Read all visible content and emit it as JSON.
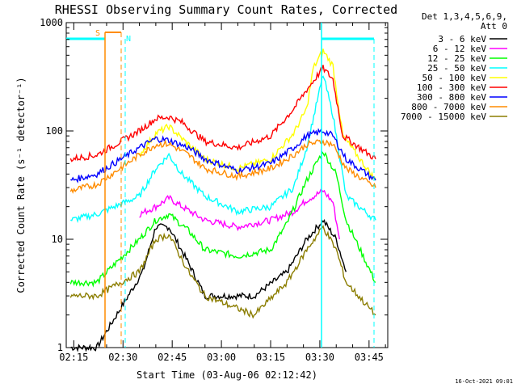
{
  "chart_data": {
    "type": "line",
    "title": "RHESSI Observing Summary Count Rates, Corrected",
    "xlabel": "Start Time (03-Aug-06 02:12:42)",
    "ylabel": "Corrected Count Rate (s⁻¹ detector⁻¹)",
    "y_scale": "log",
    "ylim": [
      1,
      1000
    ],
    "xlim": [
      "02:12:42",
      "03:50:42"
    ],
    "x_ticks": [
      "02:15",
      "02:30",
      "02:45",
      "03:00",
      "03:15",
      "03:30",
      "03:45"
    ],
    "y_ticks": [
      "1",
      "10",
      "100",
      "1000"
    ],
    "grid": false,
    "legend_position": "right",
    "legend_header": [
      "Det 1,3,4,5,6,9,",
      "Att 0"
    ],
    "timestamp": "16-Oct-2021 09:01",
    "flag_labels": [
      "S",
      "N"
    ],
    "series": [
      {
        "name": "3 - 6 keV",
        "color": "#000000",
        "points": [
          [
            "02:14",
            1
          ],
          [
            "02:22",
            1
          ],
          [
            "02:36",
            5
          ],
          [
            "02:40",
            13
          ],
          [
            "02:44",
            13
          ],
          [
            "02:50",
            6
          ],
          [
            "02:55",
            3
          ],
          [
            "03:10",
            3
          ],
          [
            "03:20",
            5
          ],
          [
            "03:26",
            10
          ],
          [
            "03:31",
            15
          ],
          [
            "03:35",
            10
          ],
          [
            "03:38",
            5
          ]
        ]
      },
      {
        "name": "6 - 12 keV",
        "color": "#ff00ff",
        "points": [
          [
            "02:35",
            17
          ],
          [
            "02:40",
            20
          ],
          [
            "02:44",
            24
          ],
          [
            "02:48",
            20
          ],
          [
            "02:55",
            15
          ],
          [
            "03:05",
            13
          ],
          [
            "03:15",
            15
          ],
          [
            "03:22",
            18
          ],
          [
            "03:26",
            23
          ],
          [
            "03:31",
            28
          ],
          [
            "03:34",
            22
          ],
          [
            "03:36",
            10
          ]
        ]
      },
      {
        "name": "12 - 25 keV",
        "color": "#00ff00",
        "points": [
          [
            "02:14",
            4
          ],
          [
            "02:22",
            4
          ],
          [
            "02:35",
            10
          ],
          [
            "02:40",
            15
          ],
          [
            "02:44",
            17
          ],
          [
            "02:50",
            12
          ],
          [
            "02:55",
            8
          ],
          [
            "03:05",
            7
          ],
          [
            "03:15",
            8
          ],
          [
            "03:20",
            14
          ],
          [
            "03:26",
            35
          ],
          [
            "03:31",
            65
          ],
          [
            "03:35",
            40
          ],
          [
            "03:38",
            15
          ],
          [
            "03:47",
            4
          ]
        ]
      },
      {
        "name": "25 - 50 keV",
        "color": "#00ffff",
        "points": [
          [
            "02:14",
            15
          ],
          [
            "02:22",
            17
          ],
          [
            "02:35",
            25
          ],
          [
            "02:40",
            45
          ],
          [
            "02:44",
            60
          ],
          [
            "02:48",
            40
          ],
          [
            "02:55",
            25
          ],
          [
            "03:05",
            18
          ],
          [
            "03:15",
            20
          ],
          [
            "03:22",
            30
          ],
          [
            "03:26",
            70
          ],
          [
            "03:31",
            330
          ],
          [
            "03:34",
            140
          ],
          [
            "03:38",
            25
          ],
          [
            "03:47",
            15
          ]
        ]
      },
      {
        "name": "50 - 100 keV",
        "color": "#ffff00",
        "points": [
          [
            "02:35",
            60
          ],
          [
            "02:40",
            95
          ],
          [
            "02:44",
            110
          ],
          [
            "02:48",
            85
          ],
          [
            "02:55",
            55
          ],
          [
            "03:05",
            45
          ],
          [
            "03:15",
            55
          ],
          [
            "03:22",
            95
          ],
          [
            "03:26",
            160
          ],
          [
            "03:28",
            380
          ],
          [
            "03:31",
            550
          ],
          [
            "03:34",
            400
          ],
          [
            "03:37",
            90
          ],
          [
            "03:47",
            35
          ]
        ]
      },
      {
        "name": "100 - 300 keV",
        "color": "#ff0000",
        "points": [
          [
            "02:14",
            55
          ],
          [
            "02:22",
            60
          ],
          [
            "02:35",
            100
          ],
          [
            "02:40",
            130
          ],
          [
            "02:44",
            135
          ],
          [
            "02:48",
            120
          ],
          [
            "02:55",
            80
          ],
          [
            "03:05",
            70
          ],
          [
            "03:15",
            90
          ],
          [
            "03:22",
            160
          ],
          [
            "03:26",
            240
          ],
          [
            "03:31",
            380
          ],
          [
            "03:34",
            300
          ],
          [
            "03:37",
            90
          ],
          [
            "03:47",
            55
          ]
        ]
      },
      {
        "name": "300 - 800 keV",
        "color": "#0000ff",
        "points": [
          [
            "02:14",
            35
          ],
          [
            "02:22",
            40
          ],
          [
            "02:35",
            70
          ],
          [
            "02:40",
            85
          ],
          [
            "02:44",
            82
          ],
          [
            "02:50",
            70
          ],
          [
            "02:55",
            55
          ],
          [
            "03:05",
            43
          ],
          [
            "03:15",
            50
          ],
          [
            "03:22",
            70
          ],
          [
            "03:26",
            90
          ],
          [
            "03:31",
            100
          ],
          [
            "03:34",
            90
          ],
          [
            "03:38",
            55
          ],
          [
            "03:47",
            35
          ]
        ]
      },
      {
        "name": "800 - 7000 keV",
        "color": "#ff8c00",
        "points": [
          [
            "02:14",
            28
          ],
          [
            "02:22",
            32
          ],
          [
            "02:35",
            60
          ],
          [
            "02:40",
            75
          ],
          [
            "02:44",
            76
          ],
          [
            "02:50",
            60
          ],
          [
            "02:55",
            45
          ],
          [
            "03:05",
            38
          ],
          [
            "03:15",
            45
          ],
          [
            "03:22",
            60
          ],
          [
            "03:26",
            75
          ],
          [
            "03:31",
            80
          ],
          [
            "03:34",
            75
          ],
          [
            "03:38",
            45
          ],
          [
            "03:47",
            30
          ]
        ]
      },
      {
        "name": "7000 - 15000 keV",
        "color": "#8b7d00",
        "points": [
          [
            "02:14",
            3
          ],
          [
            "02:22",
            3
          ],
          [
            "02:35",
            5
          ],
          [
            "02:40",
            10
          ],
          [
            "02:44",
            11
          ],
          [
            "02:50",
            5
          ],
          [
            "02:55",
            3
          ],
          [
            "03:10",
            2
          ],
          [
            "03:20",
            4
          ],
          [
            "03:26",
            8
          ],
          [
            "03:31",
            13
          ],
          [
            "03:35",
            8
          ],
          [
            "03:38",
            4
          ],
          [
            "03:47",
            2
          ]
        ]
      }
    ]
  }
}
